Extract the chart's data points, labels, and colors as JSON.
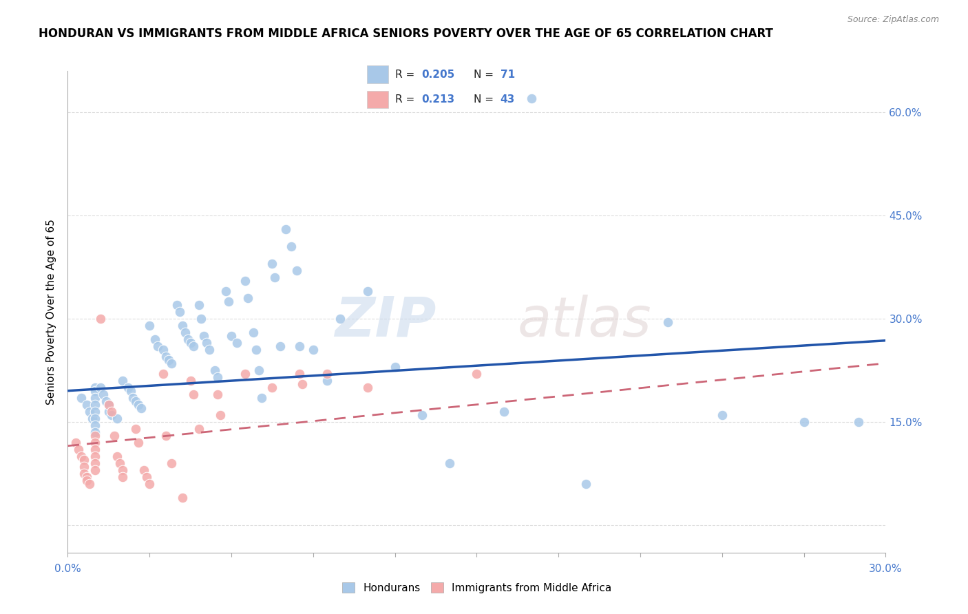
{
  "title": "HONDURAN VS IMMIGRANTS FROM MIDDLE AFRICA SENIORS POVERTY OVER THE AGE OF 65 CORRELATION CHART",
  "source": "Source: ZipAtlas.com",
  "ylabel": "Seniors Poverty Over the Age of 65",
  "y_ticks": [
    0.0,
    0.15,
    0.3,
    0.45,
    0.6
  ],
  "y_tick_labels": [
    "",
    "15.0%",
    "30.0%",
    "45.0%",
    "60.0%"
  ],
  "x_range": [
    0.0,
    0.3
  ],
  "y_range": [
    -0.04,
    0.66
  ],
  "hondurans_color": "#a8c8e8",
  "immigrants_color": "#f4aaaa",
  "trend_hondurans_color": "#2255aa",
  "trend_immigrants_color": "#cc6677",
  "hondurans_trend_start": 0.195,
  "hondurans_trend_end": 0.268,
  "immigrants_trend_start": 0.115,
  "immigrants_trend_end": 0.235,
  "hondurans_points": [
    [
      0.005,
      0.185
    ],
    [
      0.007,
      0.175
    ],
    [
      0.008,
      0.165
    ],
    [
      0.009,
      0.155
    ],
    [
      0.01,
      0.2
    ],
    [
      0.01,
      0.195
    ],
    [
      0.01,
      0.185
    ],
    [
      0.01,
      0.175
    ],
    [
      0.01,
      0.165
    ],
    [
      0.01,
      0.155
    ],
    [
      0.01,
      0.145
    ],
    [
      0.01,
      0.135
    ],
    [
      0.012,
      0.2
    ],
    [
      0.013,
      0.19
    ],
    [
      0.014,
      0.18
    ],
    [
      0.015,
      0.175
    ],
    [
      0.015,
      0.165
    ],
    [
      0.016,
      0.16
    ],
    [
      0.018,
      0.155
    ],
    [
      0.02,
      0.21
    ],
    [
      0.022,
      0.2
    ],
    [
      0.023,
      0.195
    ],
    [
      0.024,
      0.185
    ],
    [
      0.025,
      0.18
    ],
    [
      0.026,
      0.175
    ],
    [
      0.027,
      0.17
    ],
    [
      0.03,
      0.29
    ],
    [
      0.032,
      0.27
    ],
    [
      0.033,
      0.26
    ],
    [
      0.035,
      0.255
    ],
    [
      0.036,
      0.245
    ],
    [
      0.037,
      0.24
    ],
    [
      0.038,
      0.235
    ],
    [
      0.04,
      0.32
    ],
    [
      0.041,
      0.31
    ],
    [
      0.042,
      0.29
    ],
    [
      0.043,
      0.28
    ],
    [
      0.044,
      0.27
    ],
    [
      0.045,
      0.265
    ],
    [
      0.046,
      0.26
    ],
    [
      0.048,
      0.32
    ],
    [
      0.049,
      0.3
    ],
    [
      0.05,
      0.275
    ],
    [
      0.051,
      0.265
    ],
    [
      0.052,
      0.255
    ],
    [
      0.054,
      0.225
    ],
    [
      0.055,
      0.215
    ],
    [
      0.058,
      0.34
    ],
    [
      0.059,
      0.325
    ],
    [
      0.06,
      0.275
    ],
    [
      0.062,
      0.265
    ],
    [
      0.065,
      0.355
    ],
    [
      0.066,
      0.33
    ],
    [
      0.068,
      0.28
    ],
    [
      0.069,
      0.255
    ],
    [
      0.07,
      0.225
    ],
    [
      0.071,
      0.185
    ],
    [
      0.075,
      0.38
    ],
    [
      0.076,
      0.36
    ],
    [
      0.078,
      0.26
    ],
    [
      0.08,
      0.43
    ],
    [
      0.082,
      0.405
    ],
    [
      0.084,
      0.37
    ],
    [
      0.085,
      0.26
    ],
    [
      0.09,
      0.255
    ],
    [
      0.095,
      0.21
    ],
    [
      0.1,
      0.3
    ],
    [
      0.11,
      0.34
    ],
    [
      0.12,
      0.23
    ],
    [
      0.13,
      0.16
    ],
    [
      0.14,
      0.09
    ],
    [
      0.16,
      0.165
    ],
    [
      0.17,
      0.62
    ],
    [
      0.19,
      0.06
    ],
    [
      0.22,
      0.295
    ],
    [
      0.24,
      0.16
    ],
    [
      0.27,
      0.15
    ],
    [
      0.29,
      0.15
    ]
  ],
  "immigrants_points": [
    [
      0.003,
      0.12
    ],
    [
      0.004,
      0.11
    ],
    [
      0.005,
      0.1
    ],
    [
      0.006,
      0.095
    ],
    [
      0.006,
      0.085
    ],
    [
      0.006,
      0.075
    ],
    [
      0.007,
      0.07
    ],
    [
      0.007,
      0.065
    ],
    [
      0.008,
      0.06
    ],
    [
      0.01,
      0.13
    ],
    [
      0.01,
      0.12
    ],
    [
      0.01,
      0.11
    ],
    [
      0.01,
      0.1
    ],
    [
      0.01,
      0.09
    ],
    [
      0.01,
      0.08
    ],
    [
      0.012,
      0.3
    ],
    [
      0.015,
      0.175
    ],
    [
      0.016,
      0.165
    ],
    [
      0.017,
      0.13
    ],
    [
      0.018,
      0.1
    ],
    [
      0.019,
      0.09
    ],
    [
      0.02,
      0.08
    ],
    [
      0.02,
      0.07
    ],
    [
      0.025,
      0.14
    ],
    [
      0.026,
      0.12
    ],
    [
      0.028,
      0.08
    ],
    [
      0.029,
      0.07
    ],
    [
      0.03,
      0.06
    ],
    [
      0.035,
      0.22
    ],
    [
      0.036,
      0.13
    ],
    [
      0.038,
      0.09
    ],
    [
      0.042,
      0.04
    ],
    [
      0.045,
      0.21
    ],
    [
      0.046,
      0.19
    ],
    [
      0.048,
      0.14
    ],
    [
      0.055,
      0.19
    ],
    [
      0.056,
      0.16
    ],
    [
      0.065,
      0.22
    ],
    [
      0.075,
      0.2
    ],
    [
      0.085,
      0.22
    ],
    [
      0.086,
      0.205
    ],
    [
      0.095,
      0.22
    ],
    [
      0.11,
      0.2
    ],
    [
      0.15,
      0.22
    ]
  ],
  "watermark_zip": "ZIP",
  "watermark_atlas": "atlas",
  "title_fontsize": 12,
  "axis_label_fontsize": 11,
  "tick_fontsize": 11
}
